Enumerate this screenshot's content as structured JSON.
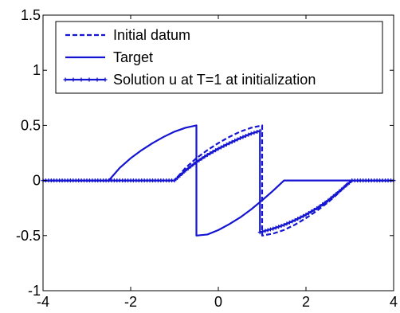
{
  "chart_data": {
    "type": "line",
    "title": "",
    "xlabel": "",
    "ylabel": "",
    "xlim": [
      -4,
      4
    ],
    "ylim": [
      -1,
      1.5
    ],
    "x_ticks": [
      -4,
      -2,
      0,
      2,
      4
    ],
    "y_ticks": [
      -1,
      -0.5,
      0,
      0.5,
      1,
      1.5
    ],
    "x_tick_labels": [
      "-4",
      "-2",
      "0",
      "2",
      "4"
    ],
    "y_tick_labels": [
      "-1",
      "-0.5",
      "0",
      "0.5",
      "1",
      "1.5"
    ],
    "grid": false,
    "legend_position": "top",
    "series": [
      {
        "name": "Initial datum",
        "style": "dashed",
        "color": "#1414d2",
        "x": [
          -4,
          -1,
          -0.75,
          -0.5,
          -0.25,
          0,
          0.25,
          0.5,
          0.75,
          1,
          1,
          1.25,
          1.5,
          1.75,
          2,
          2.25,
          2.5,
          2.75,
          3,
          4
        ],
        "y": [
          0,
          0,
          0.114,
          0.202,
          0.275,
          0.339,
          0.395,
          0.443,
          0.478,
          0.5,
          -0.5,
          -0.482,
          -0.449,
          -0.401,
          -0.342,
          -0.275,
          -0.199,
          -0.112,
          0,
          0
        ]
      },
      {
        "name": "Target",
        "style": "solid",
        "color": "#1414d2",
        "x": [
          -4,
          -2.5,
          -2.25,
          -2,
          -1.75,
          -1.5,
          -1.25,
          -1,
          -0.75,
          -0.5,
          -0.5,
          -0.25,
          0,
          0.25,
          0.5,
          0.75,
          1,
          1.25,
          1.5,
          4
        ],
        "y": [
          0,
          0,
          0.114,
          0.202,
          0.275,
          0.339,
          0.395,
          0.443,
          0.478,
          0.5,
          -0.5,
          -0.49,
          -0.45,
          -0.396,
          -0.335,
          -0.262,
          -0.18,
          -0.093,
          0,
          0
        ]
      },
      {
        "name": "Solution u at T=1 at initialization",
        "style": "solid-markers",
        "color": "#1414d2",
        "x": [
          -4,
          -1,
          -0.75,
          -0.5,
          -0.25,
          0,
          0.25,
          0.5,
          0.75,
          0.95,
          0.95,
          1.25,
          1.5,
          1.75,
          2,
          2.25,
          2.5,
          2.75,
          3.05,
          4
        ],
        "y": [
          0,
          0,
          0.09,
          0.167,
          0.232,
          0.288,
          0.338,
          0.384,
          0.425,
          0.45,
          -0.47,
          -0.437,
          -0.403,
          -0.36,
          -0.31,
          -0.252,
          -0.183,
          -0.102,
          0,
          0
        ]
      }
    ]
  }
}
